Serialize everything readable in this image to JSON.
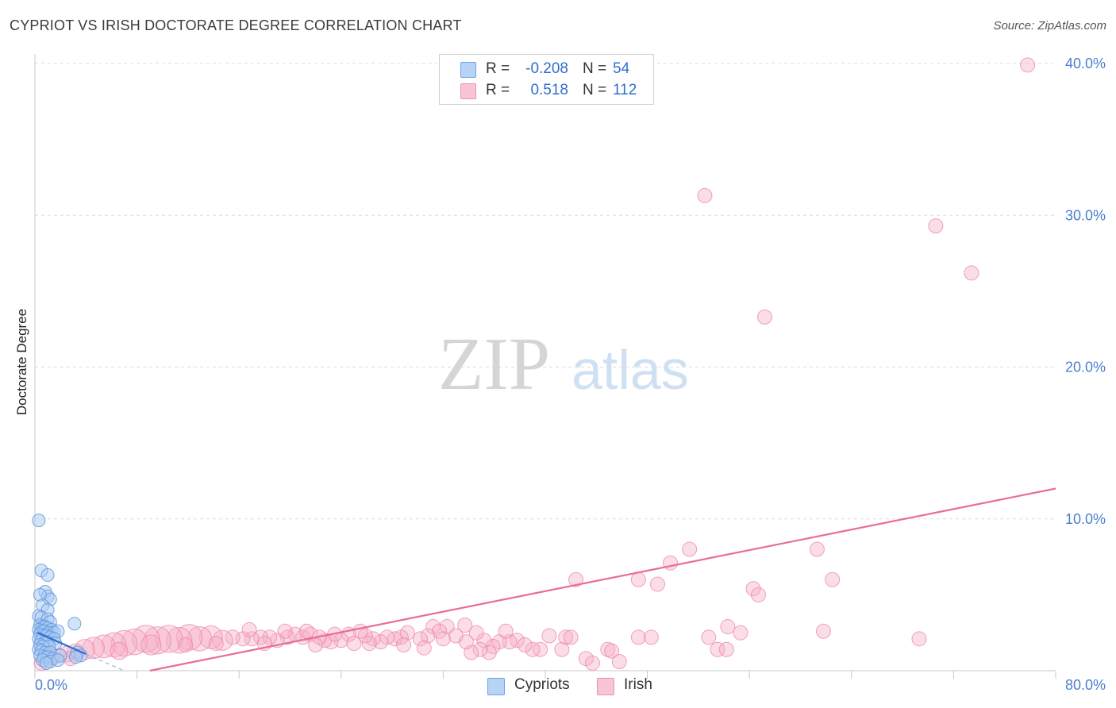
{
  "title": "CYPRIOT VS IRISH DOCTORATE DEGREE CORRELATION CHART",
  "source": "Source: ZipAtlas.com",
  "watermark": {
    "zip": "ZIP",
    "atlas": "atlas"
  },
  "legend": {
    "r_label": "R =",
    "n_label": "N =",
    "rows": [
      {
        "name": "Cypriots",
        "r": "-0.208",
        "n": "54",
        "fill": "#b7d3f5",
        "stroke": "#6ea2e6"
      },
      {
        "name": "Irish",
        "r": "0.518",
        "n": "112",
        "fill": "#f8c5d5",
        "stroke": "#ee8fb0"
      }
    ]
  },
  "chart_data": {
    "type": "scatter",
    "title": "CYPRIOT VS IRISH DOCTORATE DEGREE CORRELATION CHART",
    "xlabel": "",
    "ylabel": "Doctorate Degree",
    "xlim": [
      0,
      80
    ],
    "ylim": [
      0,
      40
    ],
    "x_tick_labels": {
      "min": "0.0%",
      "max": "80.0%"
    },
    "y_ticks": [
      {
        "value": 10,
        "label": "10.0%"
      },
      {
        "value": 20,
        "label": "20.0%"
      },
      {
        "value": 30,
        "label": "30.0%"
      },
      {
        "value": 40,
        "label": "40.0%"
      }
    ],
    "grid": true,
    "colors": {
      "tick_label": "#4a7fcf",
      "axis": "#c8c8c8",
      "grid": "#dddddd",
      "cypriot_line": "#2f6fd0",
      "irish_line": "#e86d96"
    },
    "series": [
      {
        "name": "Cypriots",
        "trend": {
          "x": [
            0.2,
            4.0
          ],
          "y": [
            2.5,
            1.1
          ],
          "dashed_extension_to_x": 7.0
        },
        "points": [
          {
            "x": 0.3,
            "y": 9.9,
            "s": 1
          },
          {
            "x": 0.5,
            "y": 6.6,
            "s": 1
          },
          {
            "x": 1.0,
            "y": 6.3,
            "s": 1
          },
          {
            "x": 0.8,
            "y": 5.2,
            "s": 1
          },
          {
            "x": 1.0,
            "y": 4.9,
            "s": 1
          },
          {
            "x": 1.2,
            "y": 4.7,
            "s": 1
          },
          {
            "x": 0.4,
            "y": 5.0,
            "s": 1
          },
          {
            "x": 0.6,
            "y": 4.3,
            "s": 1
          },
          {
            "x": 1.0,
            "y": 4.0,
            "s": 1
          },
          {
            "x": 0.3,
            "y": 3.6,
            "s": 1
          },
          {
            "x": 0.5,
            "y": 3.5,
            "s": 1
          },
          {
            "x": 1.0,
            "y": 3.4,
            "s": 1
          },
          {
            "x": 1.2,
            "y": 3.2,
            "s": 1
          },
          {
            "x": 3.1,
            "y": 3.1,
            "s": 1
          },
          {
            "x": 0.4,
            "y": 3.0,
            "s": 1
          },
          {
            "x": 0.6,
            "y": 2.9,
            "s": 1
          },
          {
            "x": 0.8,
            "y": 2.9,
            "s": 1
          },
          {
            "x": 1.0,
            "y": 2.8,
            "s": 1
          },
          {
            "x": 1.3,
            "y": 2.7,
            "s": 1
          },
          {
            "x": 0.3,
            "y": 2.7,
            "s": 1
          },
          {
            "x": 0.5,
            "y": 2.6,
            "s": 1
          },
          {
            "x": 0.7,
            "y": 2.6,
            "s": 1
          },
          {
            "x": 1.1,
            "y": 2.5,
            "s": 1
          },
          {
            "x": 1.5,
            "y": 2.5,
            "s": 1
          },
          {
            "x": 1.8,
            "y": 2.6,
            "s": 1
          },
          {
            "x": 0.4,
            "y": 2.4,
            "s": 1
          },
          {
            "x": 0.6,
            "y": 2.3,
            "s": 1
          },
          {
            "x": 0.9,
            "y": 2.3,
            "s": 1
          },
          {
            "x": 1.2,
            "y": 2.2,
            "s": 1
          },
          {
            "x": 1.5,
            "y": 2.1,
            "s": 1
          },
          {
            "x": 0.3,
            "y": 2.1,
            "s": 1
          },
          {
            "x": 0.5,
            "y": 2.0,
            "s": 1
          },
          {
            "x": 0.8,
            "y": 1.9,
            "s": 1
          },
          {
            "x": 1.0,
            "y": 1.9,
            "s": 1
          },
          {
            "x": 1.6,
            "y": 1.8,
            "s": 1
          },
          {
            "x": 0.4,
            "y": 1.7,
            "s": 1
          },
          {
            "x": 0.6,
            "y": 1.6,
            "s": 1
          },
          {
            "x": 1.1,
            "y": 1.6,
            "s": 1
          },
          {
            "x": 0.3,
            "y": 1.4,
            "s": 1
          },
          {
            "x": 0.5,
            "y": 1.3,
            "s": 1
          },
          {
            "x": 0.8,
            "y": 1.2,
            "s": 1
          },
          {
            "x": 1.2,
            "y": 1.2,
            "s": 1
          },
          {
            "x": 0.4,
            "y": 1.0,
            "s": 1
          },
          {
            "x": 0.7,
            "y": 0.9,
            "s": 1
          },
          {
            "x": 1.0,
            "y": 0.9,
            "s": 1
          },
          {
            "x": 1.4,
            "y": 0.8,
            "s": 1
          },
          {
            "x": 0.6,
            "y": 0.7,
            "s": 1
          },
          {
            "x": 1.2,
            "y": 0.6,
            "s": 1
          },
          {
            "x": 3.3,
            "y": 1.2,
            "s": 1
          },
          {
            "x": 3.6,
            "y": 1.0,
            "s": 1
          },
          {
            "x": 3.2,
            "y": 0.9,
            "s": 1
          },
          {
            "x": 2.0,
            "y": 1.0,
            "s": 1
          },
          {
            "x": 0.9,
            "y": 0.5,
            "s": 1
          },
          {
            "x": 1.8,
            "y": 0.7,
            "s": 1
          }
        ]
      },
      {
        "name": "Irish",
        "trend": {
          "x": [
            9.0,
            80.0
          ],
          "y": [
            0.0,
            12.0
          ]
        },
        "points": [
          {
            "x": 77.8,
            "y": 39.9,
            "s": 1
          },
          {
            "x": 52.5,
            "y": 31.3,
            "s": 1
          },
          {
            "x": 70.6,
            "y": 29.3,
            "s": 1
          },
          {
            "x": 73.4,
            "y": 26.2,
            "s": 1
          },
          {
            "x": 57.2,
            "y": 23.3,
            "s": 1
          },
          {
            "x": 51.3,
            "y": 8.0,
            "s": 1
          },
          {
            "x": 61.3,
            "y": 8.0,
            "s": 1
          },
          {
            "x": 49.8,
            "y": 7.1,
            "s": 1
          },
          {
            "x": 42.4,
            "y": 6.0,
            "s": 1
          },
          {
            "x": 47.3,
            "y": 6.0,
            "s": 1
          },
          {
            "x": 48.8,
            "y": 5.7,
            "s": 1
          },
          {
            "x": 62.5,
            "y": 6.0,
            "s": 1
          },
          {
            "x": 56.3,
            "y": 5.4,
            "s": 1
          },
          {
            "x": 56.7,
            "y": 5.0,
            "s": 1
          },
          {
            "x": 54.3,
            "y": 2.9,
            "s": 1
          },
          {
            "x": 55.3,
            "y": 2.5,
            "s": 1
          },
          {
            "x": 61.8,
            "y": 2.6,
            "s": 1
          },
          {
            "x": 69.3,
            "y": 2.1,
            "s": 1
          },
          {
            "x": 52.8,
            "y": 2.2,
            "s": 1
          },
          {
            "x": 53.5,
            "y": 1.4,
            "s": 1
          },
          {
            "x": 54.2,
            "y": 1.4,
            "s": 1
          },
          {
            "x": 47.3,
            "y": 2.2,
            "s": 1
          },
          {
            "x": 48.3,
            "y": 2.2,
            "s": 1
          },
          {
            "x": 44.9,
            "y": 1.4,
            "s": 1
          },
          {
            "x": 45.2,
            "y": 1.3,
            "s": 1
          },
          {
            "x": 45.8,
            "y": 0.6,
            "s": 1
          },
          {
            "x": 43.2,
            "y": 0.8,
            "s": 1
          },
          {
            "x": 43.7,
            "y": 0.5,
            "s": 1
          },
          {
            "x": 41.3,
            "y": 1.4,
            "s": 1
          },
          {
            "x": 40.3,
            "y": 2.3,
            "s": 1
          },
          {
            "x": 41.6,
            "y": 2.2,
            "s": 1
          },
          {
            "x": 42.0,
            "y": 2.2,
            "s": 1
          },
          {
            "x": 39.6,
            "y": 1.4,
            "s": 1
          },
          {
            "x": 39.0,
            "y": 1.4,
            "s": 1
          },
          {
            "x": 37.8,
            "y": 2.0,
            "s": 1
          },
          {
            "x": 37.2,
            "y": 1.9,
            "s": 1
          },
          {
            "x": 36.4,
            "y": 1.9,
            "s": 1
          },
          {
            "x": 35.9,
            "y": 1.6,
            "s": 1
          },
          {
            "x": 35.2,
            "y": 2.0,
            "s": 1
          },
          {
            "x": 34.6,
            "y": 2.5,
            "s": 1
          },
          {
            "x": 35.6,
            "y": 1.2,
            "s": 1
          },
          {
            "x": 34.9,
            "y": 1.4,
            "s": 1
          },
          {
            "x": 34.2,
            "y": 1.2,
            "s": 1
          },
          {
            "x": 33.7,
            "y": 3.0,
            "s": 1
          },
          {
            "x": 32.3,
            "y": 2.9,
            "s": 1
          },
          {
            "x": 33.0,
            "y": 2.3,
            "s": 1
          },
          {
            "x": 31.2,
            "y": 2.9,
            "s": 1
          },
          {
            "x": 31.7,
            "y": 2.6,
            "s": 1
          },
          {
            "x": 30.8,
            "y": 2.3,
            "s": 1
          },
          {
            "x": 32.0,
            "y": 2.1,
            "s": 1
          },
          {
            "x": 33.8,
            "y": 1.9,
            "s": 1
          },
          {
            "x": 30.2,
            "y": 2.1,
            "s": 1
          },
          {
            "x": 29.2,
            "y": 2.5,
            "s": 1
          },
          {
            "x": 28.7,
            "y": 2.2,
            "s": 1
          },
          {
            "x": 28.2,
            "y": 2.1,
            "s": 1
          },
          {
            "x": 27.6,
            "y": 2.2,
            "s": 1
          },
          {
            "x": 27.1,
            "y": 1.9,
            "s": 1
          },
          {
            "x": 26.5,
            "y": 2.1,
            "s": 1
          },
          {
            "x": 25.9,
            "y": 2.3,
            "s": 1
          },
          {
            "x": 25.5,
            "y": 2.6,
            "s": 1
          },
          {
            "x": 24.6,
            "y": 2.4,
            "s": 1
          },
          {
            "x": 24.0,
            "y": 2.0,
            "s": 1
          },
          {
            "x": 23.2,
            "y": 1.9,
            "s": 1
          },
          {
            "x": 22.7,
            "y": 2.0,
            "s": 1
          },
          {
            "x": 22.3,
            "y": 2.2,
            "s": 1
          },
          {
            "x": 21.6,
            "y": 2.4,
            "s": 1
          },
          {
            "x": 21.0,
            "y": 2.2,
            "s": 1
          },
          {
            "x": 20.4,
            "y": 2.4,
            "s": 1
          },
          {
            "x": 19.8,
            "y": 2.2,
            "s": 1
          },
          {
            "x": 19.0,
            "y": 2.0,
            "s": 1
          },
          {
            "x": 18.4,
            "y": 2.2,
            "s": 1
          },
          {
            "x": 17.7,
            "y": 2.2,
            "s": 1
          },
          {
            "x": 17.0,
            "y": 2.1,
            "s": 1
          },
          {
            "x": 16.3,
            "y": 2.1,
            "s": 1
          },
          {
            "x": 15.5,
            "y": 2.2,
            "s": 1
          },
          {
            "x": 14.7,
            "y": 2.0,
            "s": 1.4
          },
          {
            "x": 13.8,
            "y": 2.2,
            "s": 1.6
          },
          {
            "x": 12.9,
            "y": 2.1,
            "s": 1.7
          },
          {
            "x": 12.1,
            "y": 2.2,
            "s": 1.8
          },
          {
            "x": 11.3,
            "y": 2.0,
            "s": 1.8
          },
          {
            "x": 10.5,
            "y": 2.1,
            "s": 1.9
          },
          {
            "x": 9.6,
            "y": 2.0,
            "s": 1.9
          },
          {
            "x": 8.7,
            "y": 2.1,
            "s": 1.9
          },
          {
            "x": 7.8,
            "y": 1.9,
            "s": 1.8
          },
          {
            "x": 7.0,
            "y": 1.8,
            "s": 1.8
          },
          {
            "x": 6.2,
            "y": 1.7,
            "s": 1.7
          },
          {
            "x": 5.4,
            "y": 1.6,
            "s": 1.6
          },
          {
            "x": 4.6,
            "y": 1.5,
            "s": 1.5
          },
          {
            "x": 3.9,
            "y": 1.4,
            "s": 1.4
          },
          {
            "x": 3.2,
            "y": 1.2,
            "s": 1.2
          },
          {
            "x": 2.5,
            "y": 1.1,
            "s": 1.1
          },
          {
            "x": 1.9,
            "y": 1.0,
            "s": 1
          },
          {
            "x": 1.3,
            "y": 0.9,
            "s": 1
          },
          {
            "x": 0.8,
            "y": 0.7,
            "s": 1
          },
          {
            "x": 0.5,
            "y": 0.5,
            "s": 1
          },
          {
            "x": 16.8,
            "y": 2.7,
            "s": 1
          },
          {
            "x": 19.6,
            "y": 2.6,
            "s": 1
          },
          {
            "x": 21.3,
            "y": 2.6,
            "s": 1
          },
          {
            "x": 23.5,
            "y": 2.4,
            "s": 1
          },
          {
            "x": 26.2,
            "y": 1.8,
            "s": 1
          },
          {
            "x": 28.9,
            "y": 1.7,
            "s": 1
          },
          {
            "x": 30.5,
            "y": 1.5,
            "s": 1
          },
          {
            "x": 36.9,
            "y": 2.6,
            "s": 1
          },
          {
            "x": 38.4,
            "y": 1.7,
            "s": 1
          },
          {
            "x": 25.0,
            "y": 1.8,
            "s": 1
          },
          {
            "x": 22.0,
            "y": 1.7,
            "s": 1
          },
          {
            "x": 18.0,
            "y": 1.8,
            "s": 1
          },
          {
            "x": 14.2,
            "y": 1.8,
            "s": 1
          },
          {
            "x": 11.8,
            "y": 1.7,
            "s": 1
          },
          {
            "x": 9.1,
            "y": 1.7,
            "s": 1.4
          },
          {
            "x": 6.6,
            "y": 1.3,
            "s": 1.2
          },
          {
            "x": 2.8,
            "y": 0.8,
            "s": 1
          }
        ]
      }
    ]
  },
  "bottom_legend": [
    "Cypriots",
    "Irish"
  ]
}
